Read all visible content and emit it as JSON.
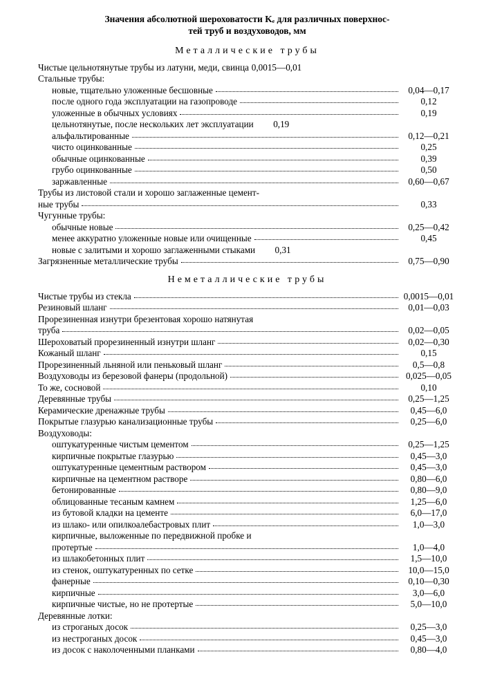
{
  "title_line1": "Значения абсолютной шероховатости Kₑ для различных поверхнос-",
  "title_line2": "тей труб и воздуховодов, мм",
  "section1_title": "Металлические трубы",
  "section2_title": "Неметаллические трубы",
  "m": {
    "clean_drawn": "Чистые цельнотянутые трубы из латуни, меди, свинца",
    "clean_drawn_v": "0,0015—0,01",
    "steel_head": "Стальные трубы:",
    "s1": "новые, тщательно уложенные бесшовные",
    "s1v": "0,04—0,17",
    "s2": "после одного года эксплуатации на газопроводе",
    "s2v": "0,12",
    "s3": "уложенные в обычных условиях",
    "s3v": "0,19",
    "s4": "цельнотянутые, после нескольких лет эксплуатации",
    "s4v": "0,19",
    "s5": "альфальтированные",
    "s5v": "0,12—0,21",
    "s6": "чисто оцинкованные",
    "s6v": "0,25",
    "s7": "обычные оцинкованные",
    "s7v": "0,39",
    "s8": "грубо оцинкованные",
    "s8v": "0,50",
    "s9": "заржавленные",
    "s9v": "0,60—0,67",
    "sheet_line1": "Трубы из листовой стали и хорошо заглаженные цемент-",
    "sheet_line2": "ные трубы",
    "sheet_v": "0,33",
    "cast_head": "Чугунные трубы:",
    "c1": "обычные новые",
    "c1v": "0,25—0,42",
    "c2": "менее аккуратно уложенные новые или очищенные",
    "c2v": "0,45",
    "c3": "новые с залитыми и хорошо заглаженными стыками",
    "c3v": "0,31",
    "dirty": "Загрязненные металлические трубы",
    "dirty_v": "0,75—0,90"
  },
  "n": {
    "glass": "Чистые трубы из стекла",
    "glass_v": "0,0015—0,01",
    "rubber": "Резиновый шланг",
    "rubber_v": "0,01—0,03",
    "tarp_line1": "Прорезиненная изнутри брезентовая хорошо натянутая",
    "tarp_line2": "труба",
    "tarp_v": "0,02—0,05",
    "rough_rubber": "Шероховатый прорезиненный изнутри шланг",
    "rough_rubber_v": "0,02—0,30",
    "leather": "Кожаный шланг",
    "leather_v": "0,15",
    "linen": "Прорезиненный льняной или пеньковый шланг",
    "linen_v": "0,5—0,8",
    "birch": "Воздуховоды из березовой фанеры (продольной)",
    "birch_v": "0,025—0,05",
    "pine": "То же, сосновой",
    "pine_v": "0,10",
    "wood": "Деревянные трубы",
    "wood_v": "0,25—1,25",
    "ceramic": "Керамические дренажные трубы",
    "ceramic_v": "0,45—6,0",
    "glazed": "Покрытые глазурью канализационные трубы",
    "glazed_v": "0,25—6,0",
    "ducts_head": "Воздуховоды:",
    "d1": "оштукатуренные чистым цементом",
    "d1v": "0,25—1,25",
    "d2": "кирпичные покрытые глазурью",
    "d2v": "0,45—3,0",
    "d3": "оштукатуренные цементным раствором",
    "d3v": "0,45—3,0",
    "d4": "кирпичные на цементном растворе",
    "d4v": "0,80—6,0",
    "d5": "бетонированные",
    "d5v": "0,80—9,0",
    "d6": "облицованные тесаным камнем",
    "d6v": "1,25—6,0",
    "d7": "из бутовой кладки на цементе",
    "d7v": "6,0—17,0",
    "d8": "из шлако- или опилкоалебастровых плит",
    "d8v": "1,0—3,0",
    "d9a": "кирпичные, выложенные по передвижной пробке и",
    "d9b": "протертые",
    "d9v": "1,0—4,0",
    "d10": "из шлакобетонных плит",
    "d10v": "1,5—10,0",
    "d11": "из стенок, оштукатуренных по сетке",
    "d11v": "10,0—15,0",
    "d12": "фанерные",
    "d12v": "0,10—0,30",
    "d13": "кирпичные",
    "d13v": "3,0—6,0",
    "d14": "кирпичные чистые, но не протертые",
    "d14v": "5,0—10,0",
    "trays_head": "Деревянные лотки:",
    "t1": "из строганых досок",
    "t1v": "0,25—3,0",
    "t2": "из нестроганых досок",
    "t2v": "0,45—3,0",
    "t3": "из досок с наколоченными планками",
    "t3v": "0,80—4,0"
  }
}
